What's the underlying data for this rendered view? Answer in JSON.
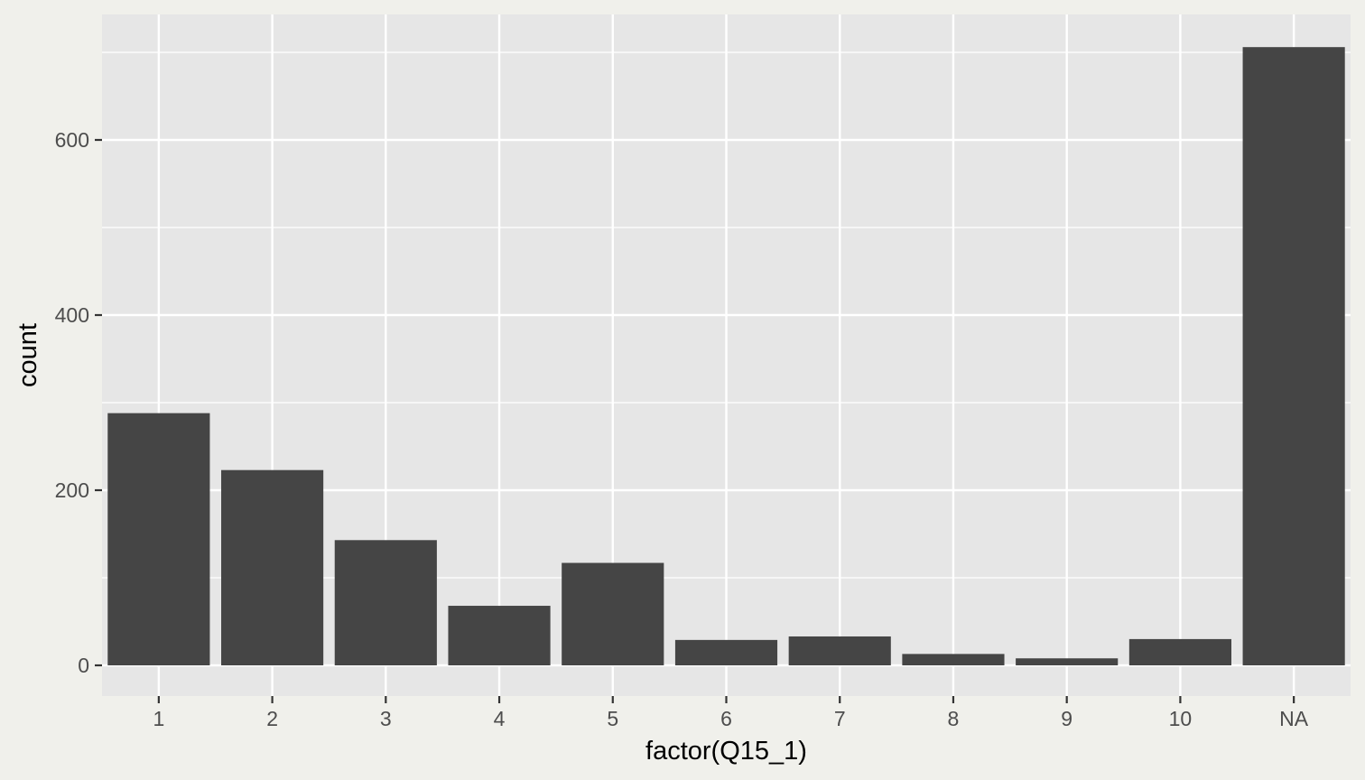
{
  "chart_data": {
    "type": "bar",
    "title": "",
    "xlabel": "factor(Q15_1)",
    "ylabel": "count",
    "categories": [
      "1",
      "2",
      "3",
      "4",
      "5",
      "6",
      "7",
      "8",
      "9",
      "10",
      "NA"
    ],
    "values": [
      288,
      223,
      143,
      68,
      117,
      29,
      33,
      13,
      8,
      30,
      706
    ],
    "ylim": [
      0,
      736
    ],
    "yticks": [
      0,
      200,
      400,
      600
    ],
    "grid": true,
    "legend": "none",
    "colors": {
      "bar": "#454545",
      "panel": "#e6e6e6",
      "grid": "#ffffff",
      "background": "#f0f0eb",
      "tick": "#333333"
    }
  }
}
